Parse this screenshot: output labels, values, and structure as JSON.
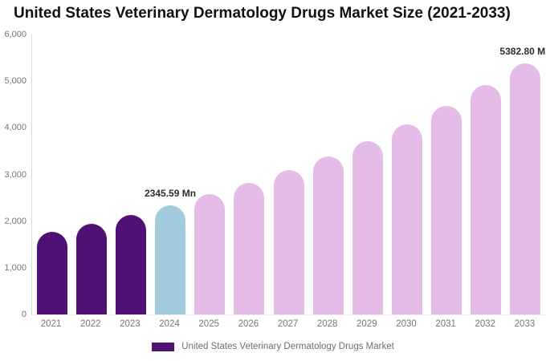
{
  "chart_data": {
    "type": "bar",
    "title": "United States Veterinary Dermatology Drugs Market Size (2021-2033)",
    "categories": [
      "2021",
      "2022",
      "2023",
      "2024",
      "2025",
      "2026",
      "2027",
      "2028",
      "2029",
      "2030",
      "2031",
      "2032",
      "2033"
    ],
    "series": [
      {
        "name": "United States Veterinary Dermatology Drugs Market",
        "values": [
          1778,
          1950,
          2139,
          2345.59,
          2572,
          2821,
          3094,
          3393,
          3721,
          4081,
          4476,
          4909,
          5382.8
        ]
      }
    ],
    "unit": "Mn",
    "ylim": [
      0,
      6000
    ],
    "ytick_interval": 1000,
    "ytick_labels": [
      "0",
      "1,000",
      "2,000",
      "3,000",
      "4,000",
      "5,000",
      "6,000"
    ],
    "grid": false,
    "legend_position": "bottom",
    "bar_colors": [
      "#4F1274",
      "#4F1274",
      "#4F1274",
      "#A3CBE0",
      "#E5BCE8",
      "#E5BCE8",
      "#E5BCE8",
      "#E5BCE8",
      "#E5BCE8",
      "#E5BCE8",
      "#E5BCE8",
      "#E5BCE8",
      "#E5BCE8"
    ],
    "color_legend_note": {
      "historical_color": "#4F1274",
      "base_year_color": "#A3CBE0",
      "forecast_color": "#E5BCE8"
    },
    "annotations": [
      {
        "category": "2024",
        "text": "2345.59 Mn"
      },
      {
        "category": "2033",
        "text": "5382.80 Mn"
      }
    ]
  },
  "legend": {
    "label": "United States Veterinary Dermatology Drugs Market",
    "swatch_color": "#4F1274"
  }
}
